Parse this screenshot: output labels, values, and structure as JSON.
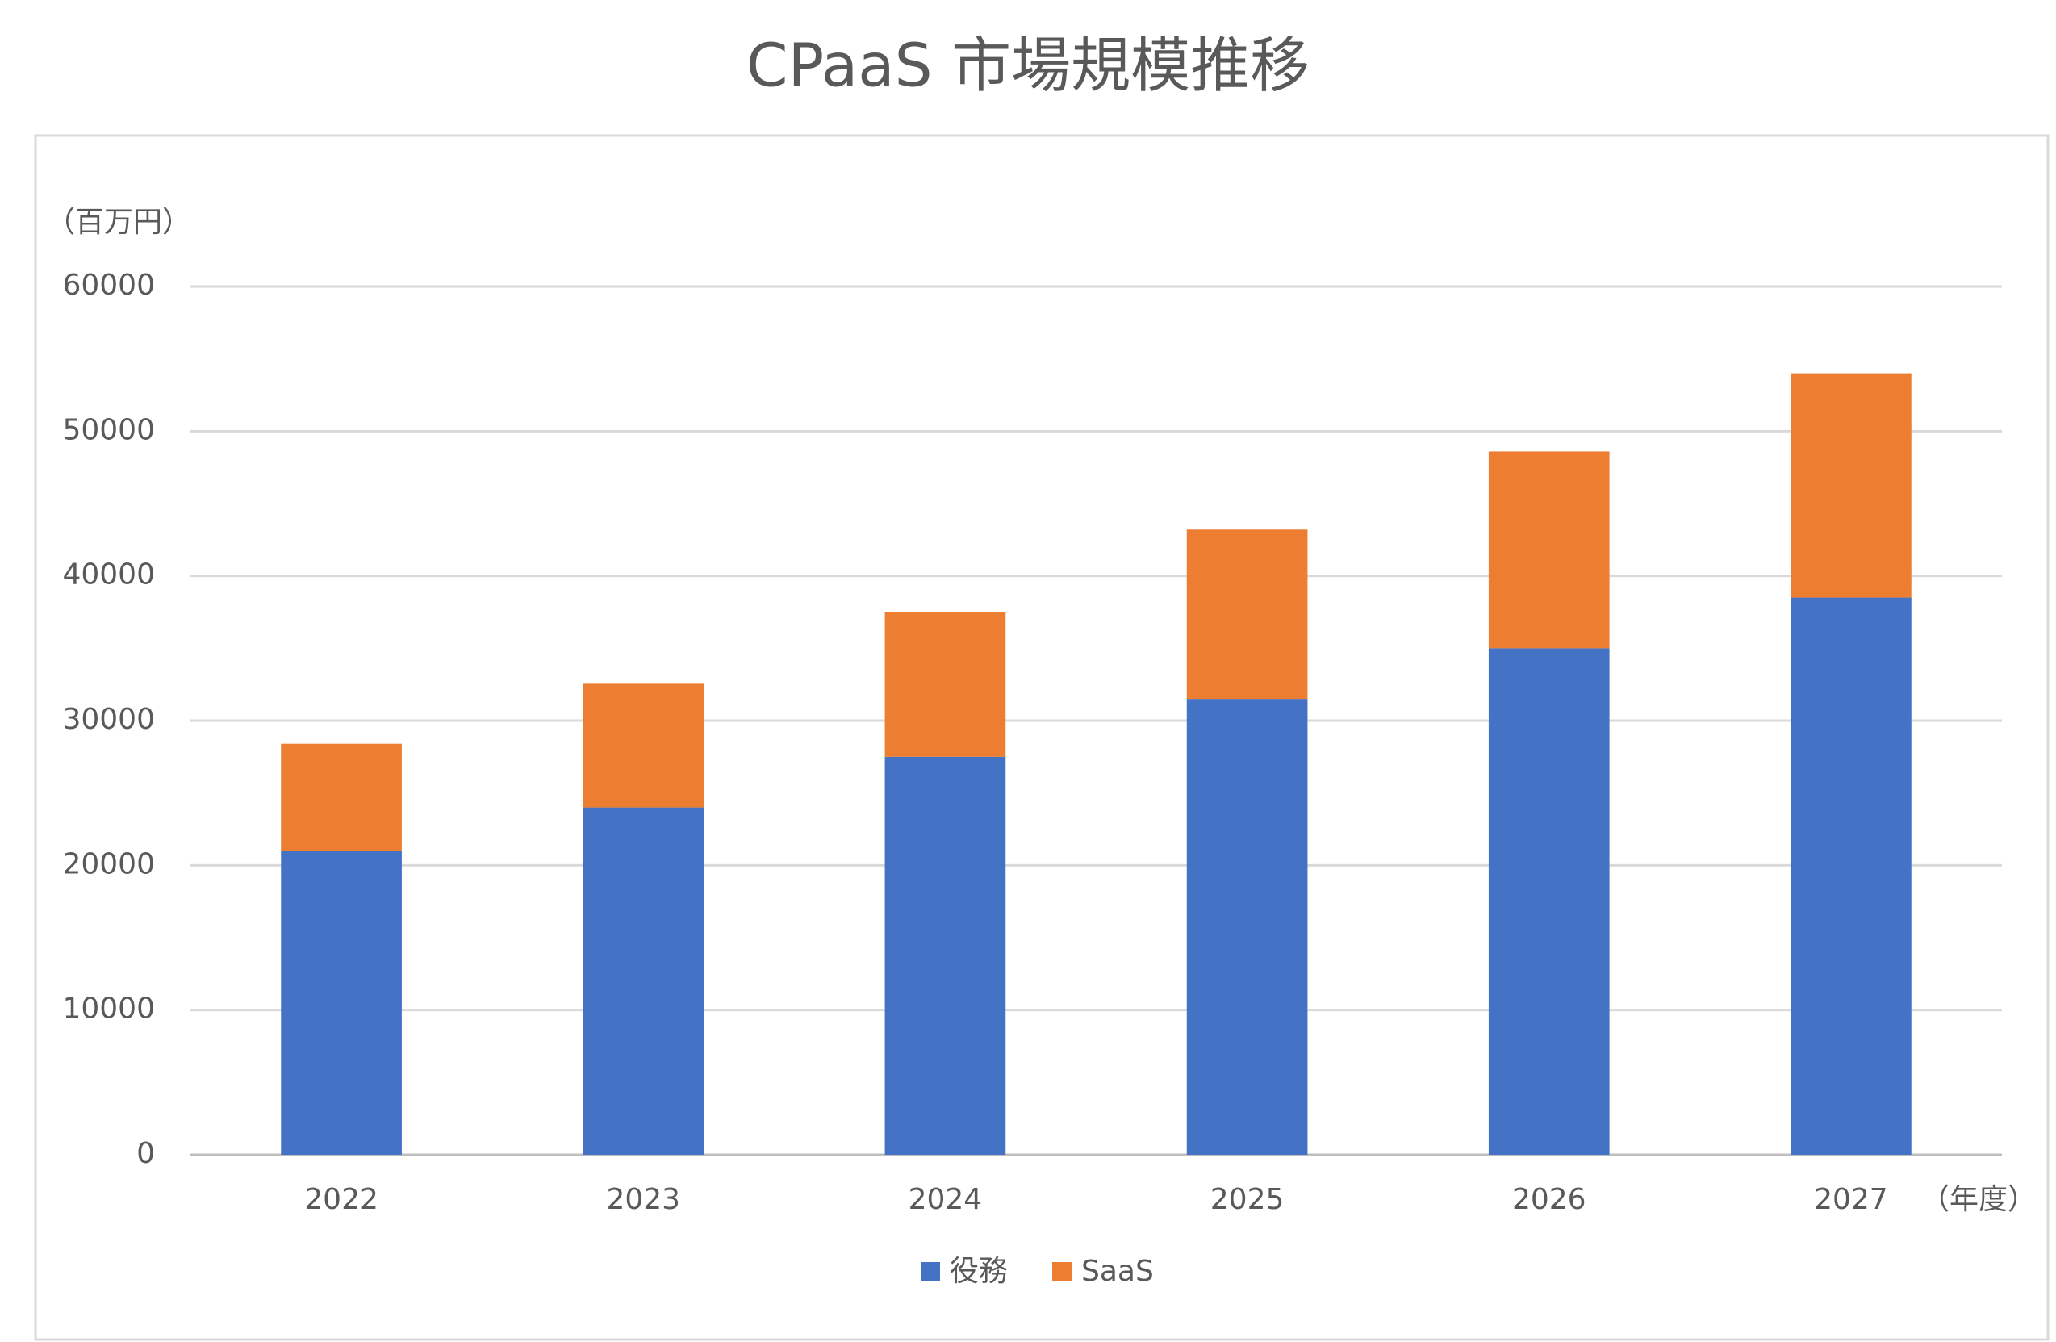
{
  "chart_data": {
    "type": "stacked_bar",
    "title": "CPaaS 市場規模推移",
    "y_unit": "（百万円）",
    "x_unit": "（年度）",
    "categories": [
      "2022",
      "2023",
      "2024",
      "2025",
      "2026",
      "2027"
    ],
    "series": [
      {
        "name": "役務",
        "color": "#4472c4",
        "values": [
          21000,
          24000,
          27500,
          31500,
          35000,
          38500
        ]
      },
      {
        "name": "SaaS",
        "color": "#ed7d31",
        "values": [
          7400,
          8600,
          10000,
          11700,
          13600,
          15500
        ]
      }
    ],
    "ylim": [
      0,
      60000
    ],
    "yticks": [
      0,
      10000,
      20000,
      30000,
      40000,
      50000,
      60000
    ],
    "grid": true
  }
}
